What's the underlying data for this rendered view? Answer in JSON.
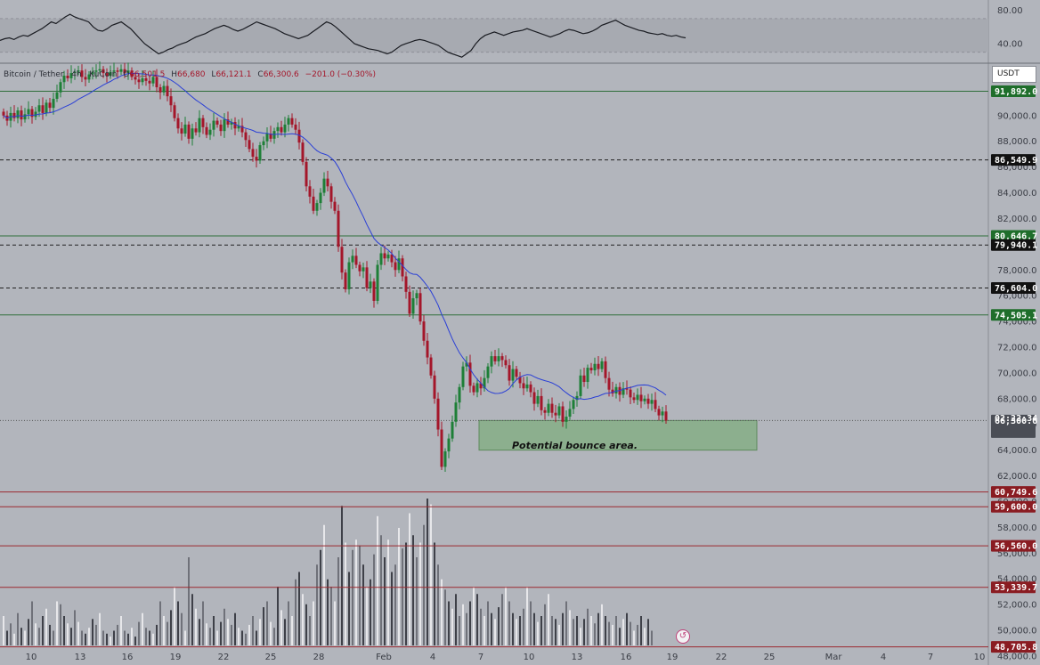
{
  "legend": {
    "symbol": "Bitcoin / Tether · 4h · KuCoin",
    "o_label": "O",
    "o": "66,501.5",
    "h_label": "H",
    "h": "66,680",
    "l_label": "L",
    "l": "66,121.1",
    "c_label": "C",
    "c": "66,300.6",
    "change": "−201.0 (−0.30%)"
  },
  "currency": "USDT",
  "countdown": "02:22:34",
  "annotation": "Potential bounce area.",
  "colors": {
    "background": "#b2b5bc",
    "bull": "#1e7f37",
    "bear": "#a4162a",
    "ma": "#2a3fd6",
    "zone": "#7fae7f",
    "green_tag": "#1f6e2b",
    "red_tag": "#8a1c22",
    "black_tag": "#111111",
    "grey_tag": "#4a4d55"
  },
  "chart_data": [
    {
      "type": "line",
      "panel": "oscillator",
      "ylim": [
        20,
        90
      ],
      "y_ticks": [
        "80.00",
        "40.00"
      ],
      "values": [
        44,
        46,
        47,
        45,
        48,
        50,
        49,
        52,
        55,
        58,
        62,
        66,
        64,
        68,
        72,
        75,
        72,
        70,
        68,
        66,
        60,
        56,
        55,
        58,
        62,
        64,
        66,
        62,
        58,
        52,
        46,
        40,
        36,
        32,
        28,
        30,
        33,
        35,
        38,
        40,
        42,
        45,
        48,
        50,
        52,
        55,
        58,
        60,
        62,
        60,
        57,
        55,
        57,
        60,
        63,
        66,
        64,
        62,
        60,
        58,
        55,
        52,
        50,
        48,
        46,
        48,
        50,
        54,
        58,
        62,
        66,
        64,
        60,
        55,
        50,
        45,
        40,
        38,
        36,
        34,
        33,
        32,
        30,
        28,
        30,
        34,
        38,
        40,
        42,
        44,
        45,
        44,
        42,
        40,
        38,
        34,
        30,
        28,
        26,
        24,
        28,
        32,
        40,
        46,
        50,
        52,
        54,
        52,
        50,
        52,
        54,
        55,
        56,
        58,
        56,
        54,
        52,
        50,
        48,
        50,
        52,
        55,
        57,
        56,
        54,
        52,
        53,
        55,
        58,
        62,
        64,
        66,
        68,
        65,
        62,
        60,
        58,
        56,
        55,
        53,
        52,
        51,
        52,
        50,
        49,
        50,
        48,
        47
      ]
    },
    {
      "type": "candlestick",
      "panel": "price",
      "ylim": [
        47300,
        94000
      ],
      "y_ticks": [
        48000,
        50000,
        52000,
        54000,
        56000,
        58000,
        60000,
        62000,
        64000,
        66000,
        68000,
        70000,
        72000,
        74000,
        76000,
        78000,
        80000,
        82000,
        84000,
        86000,
        88000,
        90000
      ],
      "x_tick_labels": [
        "10",
        "13",
        "16",
        "19",
        "22",
        "25",
        "28",
        "Feb",
        "4",
        "7",
        "10",
        "13",
        "16",
        "19",
        "22",
        "25",
        "Mar",
        "4",
        "7",
        "10"
      ],
      "closes": [
        90000,
        89600,
        90200,
        89800,
        90400,
        89700,
        90100,
        90500,
        89900,
        90300,
        90800,
        90200,
        91000,
        90600,
        91300,
        91800,
        92600,
        93100,
        92900,
        93300,
        93400,
        93500,
        93000,
        92800,
        93200,
        93400,
        93500,
        93600,
        93300,
        93100,
        93400,
        93500,
        93400,
        93600,
        93300,
        93500,
        93000,
        92800,
        92600,
        92900,
        92700,
        92500,
        93000,
        92200,
        91800,
        92300,
        91500,
        90800,
        89800,
        89000,
        88600,
        89300,
        88200,
        89000,
        88700,
        89800,
        89100,
        88500,
        88900,
        89600,
        89300,
        88800,
        89700,
        89300,
        89500,
        89000,
        89200,
        88700,
        88100,
        87400,
        86800,
        86500,
        87700,
        88000,
        88600,
        88200,
        88800,
        89100,
        88700,
        89300,
        89800,
        89300,
        88900,
        87900,
        86400,
        84500,
        83700,
        82600,
        83200,
        84000,
        85100,
        84500,
        83300,
        82600,
        79800,
        77800,
        76500,
        78600,
        79100,
        78400,
        77900,
        78200,
        76600,
        77100,
        75600,
        78400,
        79300,
        78900,
        79200,
        78600,
        78000,
        78900,
        77500,
        76300,
        74600,
        75800,
        76200,
        74000,
        72500,
        71200,
        69800,
        68000,
        65600,
        62700,
        63900,
        64900,
        66200,
        67700,
        68900,
        70500,
        70800,
        69000,
        68500,
        69200,
        68800,
        69600,
        70500,
        71300,
        70900,
        71300,
        71000,
        70600,
        69400,
        70300,
        69700,
        69200,
        68800,
        69100,
        68500,
        67600,
        68200,
        67100,
        66900,
        67600,
        66900,
        66700,
        67400,
        66200,
        66600,
        67200,
        67900,
        68200,
        69800,
        69300,
        70400,
        70200,
        70700,
        70300,
        70900,
        69600,
        68700,
        68400,
        68900,
        68300,
        68800,
        68700,
        68100,
        67900,
        68300,
        67800,
        68000,
        67600,
        67900,
        67200,
        66700,
        67000,
        66301
      ]
    },
    {
      "type": "hline",
      "panel": "price",
      "levels": [
        {
          "price": 91892.0,
          "label": "91,892.0",
          "style": "solid",
          "tag": "green"
        },
        {
          "price": 86549.9,
          "label": "86,549.9",
          "style": "dashed",
          "tag": "black"
        },
        {
          "price": 80646.7,
          "label": "80,646.7",
          "style": "solid",
          "tag": "green"
        },
        {
          "price": 79940.1,
          "label": "79,940.1",
          "style": "dashed",
          "tag": "black"
        },
        {
          "price": 76604.0,
          "label": "76,604.0",
          "style": "dashed",
          "tag": "black"
        },
        {
          "price": 74505.1,
          "label": "74,505.1",
          "style": "solid",
          "tag": "green"
        },
        {
          "price": 66300.6,
          "label": "66,300.6",
          "style": "dotted",
          "tag": "grey"
        },
        {
          "price": 60749.6,
          "label": "60,749.6",
          "style": "solid",
          "tag": "red"
        },
        {
          "price": 59600.0,
          "label": "59,600.0",
          "style": "solid",
          "tag": "red"
        },
        {
          "price": 56560.0,
          "label": "56,560.0",
          "style": "solid",
          "tag": "red"
        },
        {
          "price": 53339.7,
          "label": "53,339.7",
          "style": "solid",
          "tag": "red"
        },
        {
          "price": 48705.8,
          "label": "48,705.8",
          "style": "solid",
          "tag": "red"
        }
      ]
    },
    {
      "type": "area",
      "panel": "price",
      "name": "Potential bounce area.",
      "price_range": [
        64000,
        66300
      ]
    },
    {
      "type": "bar",
      "panel": "volume",
      "relative_values": [
        0.2,
        0.1,
        0.15,
        0.08,
        0.22,
        0.12,
        0.1,
        0.18,
        0.3,
        0.15,
        0.12,
        0.2,
        0.25,
        0.14,
        0.1,
        0.3,
        0.28,
        0.2,
        0.15,
        0.12,
        0.24,
        0.16,
        0.1,
        0.08,
        0.12,
        0.18,
        0.14,
        0.22,
        0.1,
        0.08,
        0.06,
        0.1,
        0.14,
        0.2,
        0.1,
        0.08,
        0.12,
        0.06,
        0.16,
        0.22,
        0.12,
        0.1,
        0.08,
        0.14,
        0.3,
        0.2,
        0.16,
        0.24,
        0.4,
        0.3,
        0.22,
        0.1,
        0.6,
        0.35,
        0.25,
        0.18,
        0.3,
        0.15,
        0.12,
        0.2,
        0.1,
        0.16,
        0.25,
        0.18,
        0.14,
        0.22,
        0.12,
        0.1,
        0.08,
        0.14,
        0.2,
        0.1,
        0.18,
        0.26,
        0.3,
        0.16,
        0.12,
        0.4,
        0.24,
        0.18,
        0.3,
        0.2,
        0.45,
        0.5,
        0.35,
        0.28,
        0.2,
        0.3,
        0.55,
        0.65,
        0.82,
        0.45,
        0.4,
        0.3,
        0.6,
        0.95,
        0.7,
        0.5,
        0.65,
        0.72,
        0.68,
        0.55,
        0.4,
        0.45,
        0.62,
        0.88,
        0.75,
        0.6,
        0.72,
        0.5,
        0.55,
        0.8,
        0.66,
        0.7,
        0.9,
        0.75,
        0.6,
        0.7,
        0.82,
        1.0,
        0.96,
        0.7,
        0.55,
        0.45,
        0.38,
        0.3,
        0.25,
        0.35,
        0.2,
        0.28,
        0.22,
        0.3,
        0.4,
        0.35,
        0.25,
        0.2,
        0.3,
        0.22,
        0.18,
        0.26,
        0.35,
        0.4,
        0.3,
        0.22,
        0.18,
        0.2,
        0.25,
        0.4,
        0.3,
        0.22,
        0.16,
        0.2,
        0.28,
        0.35,
        0.2,
        0.18,
        0.14,
        0.22,
        0.3,
        0.24,
        0.18,
        0.2,
        0.12,
        0.18,
        0.25,
        0.2,
        0.15,
        0.22,
        0.28,
        0.2,
        0.16,
        0.14,
        0.2,
        0.12,
        0.18,
        0.22,
        0.16,
        0.1,
        0.14,
        0.2,
        0.12,
        0.18,
        0.1
      ]
    }
  ]
}
